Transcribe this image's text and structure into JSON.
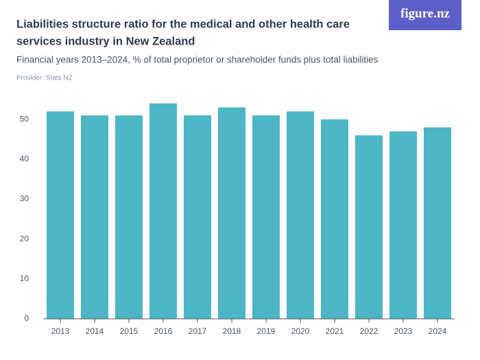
{
  "chart_data": {
    "type": "bar",
    "title_lines": [
      "Liabilities structure ratio for the medical and other health care",
      "services industry in New Zealand"
    ],
    "subtitle": "Financial years 2013–2024, % of total proprietor or shareholder funds plus total liabilities",
    "provider": "Provider: Stats NZ",
    "logo": "figure.nz",
    "categories": [
      "2013",
      "2014",
      "2015",
      "2016",
      "2017",
      "2018",
      "2019",
      "2020",
      "2021",
      "2022",
      "2023",
      "2024"
    ],
    "values": [
      52,
      51,
      51,
      54,
      51,
      53,
      51,
      52,
      50,
      46,
      47,
      48
    ],
    "color": "#4cb6c4",
    "ylim": [
      0,
      55
    ],
    "yticks": [
      0,
      10,
      20,
      30,
      40,
      50
    ],
    "grid": false
  }
}
